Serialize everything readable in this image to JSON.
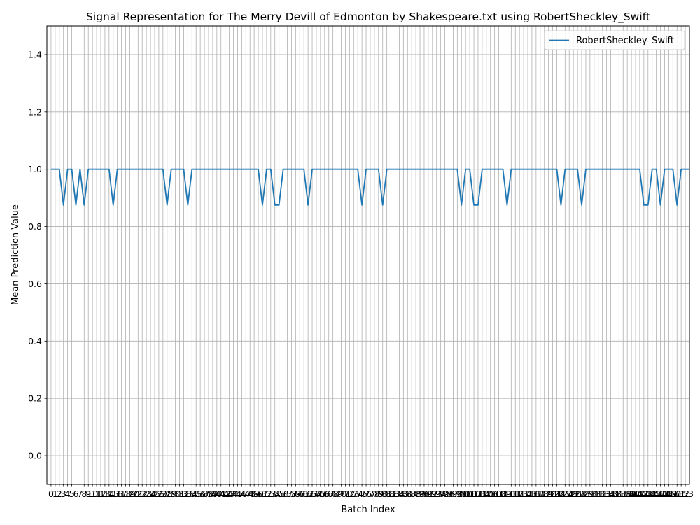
{
  "chart_data": {
    "type": "line",
    "title": "Signal Representation for The Merry Devill of Edmonton by Shakespeare.txt using RobertSheckley_Swift",
    "xlabel": "Batch Index",
    "ylabel": "Mean Prediction Value",
    "xlim": [
      -1,
      154
    ],
    "ylim": [
      -0.1,
      1.5
    ],
    "yticks": [
      0.0,
      0.2,
      0.4,
      0.6,
      0.8,
      1.0,
      1.2,
      1.4
    ],
    "ytick_labels": [
      "0.0",
      "0.2",
      "0.4",
      "0.6",
      "0.8",
      "1.0",
      "1.2",
      "1.4"
    ],
    "xticks_start": 0,
    "xticks_end": 153,
    "grid": true,
    "legend_position": "top-right",
    "series": [
      {
        "name": "RobertSheckley_Swift",
        "color": "#1f77b4",
        "x_start": 0,
        "values": [
          1,
          1,
          1,
          0.875,
          1,
          1,
          0.875,
          1,
          0.875,
          1,
          1,
          1,
          1,
          1,
          1,
          0.875,
          1,
          1,
          1,
          1,
          1,
          1,
          1,
          1,
          1,
          1,
          1,
          1,
          0.875,
          1,
          1,
          1,
          1,
          0.875,
          1,
          1,
          1,
          1,
          1,
          1,
          1,
          1,
          1,
          1,
          1,
          1,
          1,
          1,
          1,
          1,
          1,
          0.875,
          1,
          1,
          0.875,
          0.875,
          1,
          1,
          1,
          1,
          1,
          1,
          0.875,
          1,
          1,
          1,
          1,
          1,
          1,
          1,
          1,
          1,
          1,
          1,
          1,
          0.875,
          1,
          1,
          1,
          1,
          0.875,
          1,
          1,
          1,
          1,
          1,
          1,
          1,
          1,
          1,
          1,
          1,
          1,
          1,
          1,
          1,
          1,
          1,
          1,
          0.875,
          1,
          1,
          0.875,
          0.875,
          1,
          1,
          1,
          1,
          1,
          1,
          0.875,
          1,
          1,
          1,
          1,
          1,
          1,
          1,
          1,
          1,
          1,
          1,
          1,
          0.875,
          1,
          1,
          1,
          1,
          0.875,
          1,
          1,
          1,
          1,
          1,
          1,
          1,
          1,
          1,
          1,
          1,
          1,
          1,
          1,
          0.875,
          0.875,
          1,
          1,
          0.875,
          1,
          1,
          1,
          0.875,
          1,
          1,
          1
        ]
      }
    ]
  }
}
